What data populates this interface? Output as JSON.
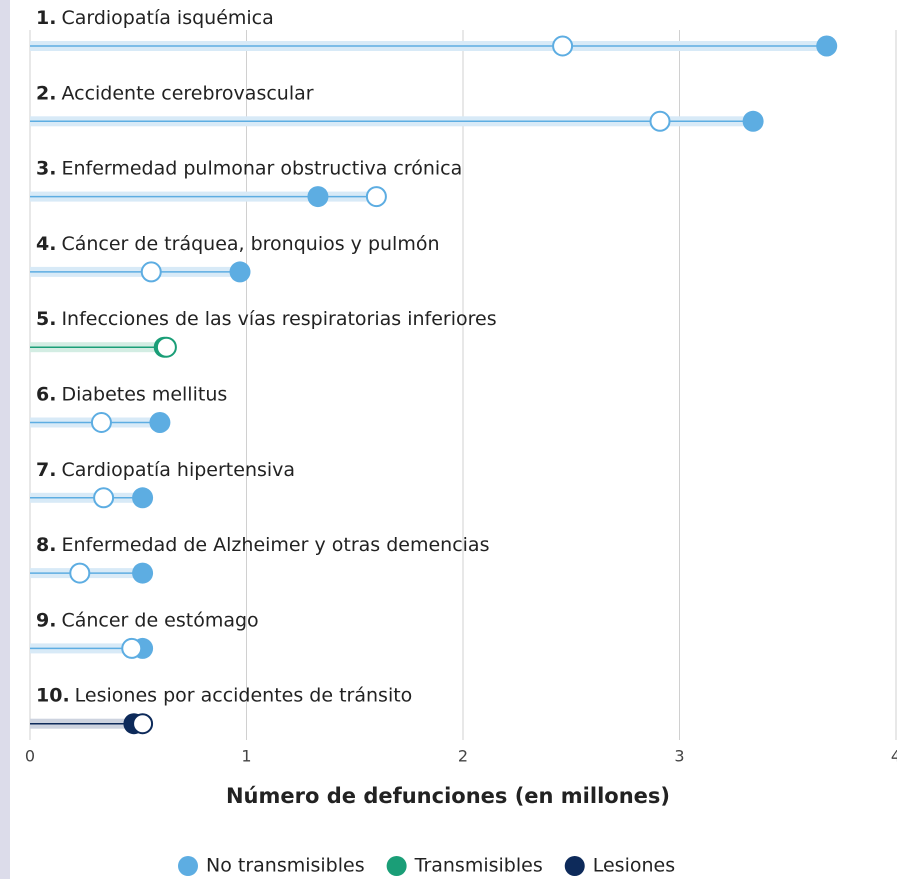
{
  "chart_data": {
    "type": "dumbbell",
    "xlabel": "Número de defunciones (en millones)",
    "xlim": [
      0,
      4
    ],
    "xticks": [
      0,
      1,
      2,
      3,
      4
    ],
    "grid": true,
    "items": [
      {
        "rank": "1.",
        "label": "Cardiopatía isquémica",
        "color": "#5dade2",
        "start": 2.46,
        "end": 3.68
      },
      {
        "rank": "2.",
        "label": "Accidente cerebrovascular",
        "color": "#5dade2",
        "start": 2.91,
        "end": 3.34
      },
      {
        "rank": "3.",
        "label": "Enfermedad pulmonar obstructiva crónica",
        "color": "#5dade2",
        "start": 1.6,
        "end": 1.33
      },
      {
        "rank": "4.",
        "label": "Cáncer de tráquea, bronquios y pulmón",
        "color": "#5dade2",
        "start": 0.56,
        "end": 0.97
      },
      {
        "rank": "5.",
        "label": "Infecciones de las vías respiratorias inferiores",
        "color": "#1a9e77",
        "start": 0.63,
        "end": 0.62
      },
      {
        "rank": "6.",
        "label": "Diabetes mellitus",
        "color": "#5dade2",
        "start": 0.33,
        "end": 0.6
      },
      {
        "rank": "7.",
        "label": "Cardiopatía hipertensiva",
        "color": "#5dade2",
        "start": 0.34,
        "end": 0.52
      },
      {
        "rank": "8.",
        "label": "Enfermedad de Alzheimer y otras demencias",
        "color": "#5dade2",
        "start": 0.23,
        "end": 0.52
      },
      {
        "rank": "9.",
        "label": "Cáncer de estómago",
        "color": "#5dade2",
        "start": 0.47,
        "end": 0.52
      },
      {
        "rank": "10.",
        "label": "Lesiones por accidentes de tránsito",
        "color": "#0d2a5a",
        "start": 0.52,
        "end": 0.48
      }
    ],
    "legend": [
      {
        "name": "No transmisibles",
        "color": "#5dade2"
      },
      {
        "name": "Transmisibles",
        "color": "#1a9e77"
      },
      {
        "name": "Lesiones",
        "color": "#0d2a5a"
      }
    ]
  }
}
